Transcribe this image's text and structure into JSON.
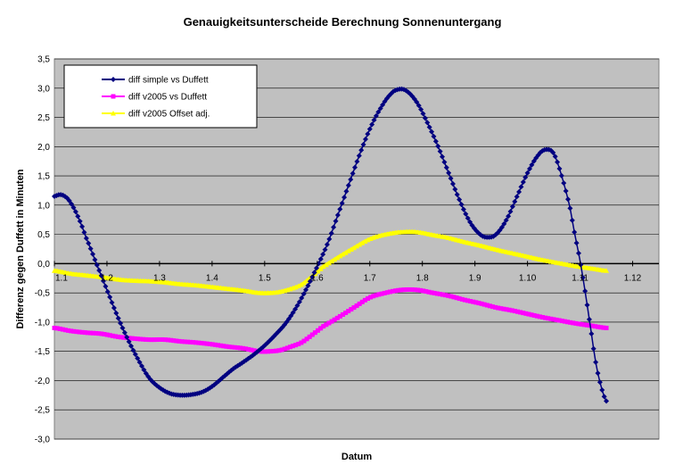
{
  "chart_data": {
    "type": "line",
    "title": "Genauigkeitsunterscheide Berechnung Sonnenuntergang",
    "xlabel": "Datum",
    "ylabel": "Differenz gegen Duffett in Minuten",
    "ylim": [
      -3.0,
      3.5
    ],
    "yticks": [
      "-3,0",
      "-2,5",
      "-2,0",
      "-1,5",
      "-1,0",
      "-0,5",
      "0,0",
      "0,5",
      "1,0",
      "1,5",
      "2,0",
      "2,5",
      "3,0",
      "3,5"
    ],
    "categories": [
      "1.1",
      "1.2",
      "1.3",
      "1.4",
      "1.5",
      "1.6",
      "1.7",
      "1.8",
      "1.9",
      "1.10",
      "1.11",
      "1.12"
    ],
    "grid": true,
    "plot_background": "#c0c0c0",
    "legend_position": "top-left",
    "series": [
      {
        "name": "diff simple vs Duffett",
        "color": "#000080",
        "marker": "diamond",
        "points": [
          [
            0,
            1.15
          ],
          [
            0.1,
            1.18
          ],
          [
            0.2,
            1.15
          ],
          [
            0.3,
            1.05
          ],
          [
            0.45,
            0.8
          ],
          [
            0.6,
            0.45
          ],
          [
            0.8,
            0.0
          ],
          [
            1.0,
            -0.45
          ],
          [
            1.2,
            -0.9
          ],
          [
            1.4,
            -1.3
          ],
          [
            1.6,
            -1.65
          ],
          [
            1.8,
            -1.95
          ],
          [
            2.0,
            -2.12
          ],
          [
            2.2,
            -2.22
          ],
          [
            2.4,
            -2.25
          ],
          [
            2.6,
            -2.24
          ],
          [
            2.8,
            -2.2
          ],
          [
            3.0,
            -2.1
          ],
          [
            3.2,
            -1.95
          ],
          [
            3.4,
            -1.8
          ],
          [
            3.6,
            -1.68
          ],
          [
            3.8,
            -1.55
          ],
          [
            4.0,
            -1.4
          ],
          [
            4.2,
            -1.22
          ],
          [
            4.4,
            -1.02
          ],
          [
            4.6,
            -0.75
          ],
          [
            4.8,
            -0.42
          ],
          [
            5.0,
            -0.05
          ],
          [
            5.2,
            0.35
          ],
          [
            5.4,
            0.85
          ],
          [
            5.6,
            1.35
          ],
          [
            5.8,
            1.85
          ],
          [
            6.0,
            2.3
          ],
          [
            6.2,
            2.65
          ],
          [
            6.4,
            2.9
          ],
          [
            6.55,
            2.98
          ],
          [
            6.7,
            2.95
          ],
          [
            6.9,
            2.75
          ],
          [
            7.1,
            2.4
          ],
          [
            7.3,
            2.0
          ],
          [
            7.5,
            1.55
          ],
          [
            7.7,
            1.1
          ],
          [
            7.9,
            0.72
          ],
          [
            8.1,
            0.5
          ],
          [
            8.25,
            0.45
          ],
          [
            8.4,
            0.5
          ],
          [
            8.6,
            0.75
          ],
          [
            8.8,
            1.15
          ],
          [
            9.0,
            1.55
          ],
          [
            9.2,
            1.85
          ],
          [
            9.35,
            1.95
          ],
          [
            9.5,
            1.88
          ],
          [
            9.65,
            1.5
          ],
          [
            9.8,
            1.0
          ],
          [
            9.9,
            0.5
          ],
          [
            10.0,
            0.05
          ],
          [
            10.1,
            -0.5
          ],
          [
            10.2,
            -1.1
          ],
          [
            10.3,
            -1.7
          ],
          [
            10.4,
            -2.1
          ],
          [
            10.5,
            -2.35
          ]
        ]
      },
      {
        "name": "diff v2005 vs Duffett",
        "color": "#ff00ff",
        "marker": "square",
        "points": [
          [
            0,
            -1.1
          ],
          [
            0.3,
            -1.15
          ],
          [
            0.6,
            -1.18
          ],
          [
            0.9,
            -1.2
          ],
          [
            1.2,
            -1.25
          ],
          [
            1.5,
            -1.28
          ],
          [
            1.8,
            -1.3
          ],
          [
            2.1,
            -1.3
          ],
          [
            2.4,
            -1.33
          ],
          [
            2.7,
            -1.35
          ],
          [
            3.0,
            -1.38
          ],
          [
            3.3,
            -1.42
          ],
          [
            3.6,
            -1.45
          ],
          [
            3.9,
            -1.5
          ],
          [
            4.1,
            -1.5
          ],
          [
            4.3,
            -1.48
          ],
          [
            4.5,
            -1.42
          ],
          [
            4.7,
            -1.35
          ],
          [
            4.9,
            -1.22
          ],
          [
            5.1,
            -1.08
          ],
          [
            5.4,
            -0.92
          ],
          [
            5.7,
            -0.75
          ],
          [
            6.0,
            -0.58
          ],
          [
            6.3,
            -0.5
          ],
          [
            6.6,
            -0.45
          ],
          [
            6.9,
            -0.45
          ],
          [
            7.2,
            -0.5
          ],
          [
            7.5,
            -0.55
          ],
          [
            7.8,
            -0.62
          ],
          [
            8.1,
            -0.68
          ],
          [
            8.4,
            -0.75
          ],
          [
            8.7,
            -0.8
          ],
          [
            9.0,
            -0.86
          ],
          [
            9.3,
            -0.92
          ],
          [
            9.6,
            -0.97
          ],
          [
            9.9,
            -1.02
          ],
          [
            10.2,
            -1.06
          ],
          [
            10.5,
            -1.1
          ]
        ]
      },
      {
        "name": "diff v2005 Offset adj.",
        "color": "#ffff00",
        "marker": "triangle",
        "points": [
          [
            0,
            -0.12
          ],
          [
            0.3,
            -0.17
          ],
          [
            0.6,
            -0.2
          ],
          [
            0.9,
            -0.23
          ],
          [
            1.2,
            -0.27
          ],
          [
            1.5,
            -0.29
          ],
          [
            1.8,
            -0.3
          ],
          [
            2.1,
            -0.32
          ],
          [
            2.4,
            -0.35
          ],
          [
            2.7,
            -0.37
          ],
          [
            3.0,
            -0.4
          ],
          [
            3.3,
            -0.43
          ],
          [
            3.6,
            -0.46
          ],
          [
            3.9,
            -0.5
          ],
          [
            4.1,
            -0.5
          ],
          [
            4.3,
            -0.48
          ],
          [
            4.5,
            -0.43
          ],
          [
            4.7,
            -0.36
          ],
          [
            4.9,
            -0.22
          ],
          [
            5.1,
            -0.06
          ],
          [
            5.4,
            0.11
          ],
          [
            5.7,
            0.27
          ],
          [
            6.0,
            0.42
          ],
          [
            6.3,
            0.5
          ],
          [
            6.6,
            0.54
          ],
          [
            6.9,
            0.54
          ],
          [
            7.2,
            0.49
          ],
          [
            7.5,
            0.44
          ],
          [
            7.8,
            0.37
          ],
          [
            8.1,
            0.31
          ],
          [
            8.4,
            0.24
          ],
          [
            8.7,
            0.18
          ],
          [
            9.0,
            0.12
          ],
          [
            9.3,
            0.06
          ],
          [
            9.6,
            0.01
          ],
          [
            9.9,
            -0.04
          ],
          [
            10.2,
            -0.08
          ],
          [
            10.5,
            -0.12
          ]
        ]
      }
    ]
  }
}
